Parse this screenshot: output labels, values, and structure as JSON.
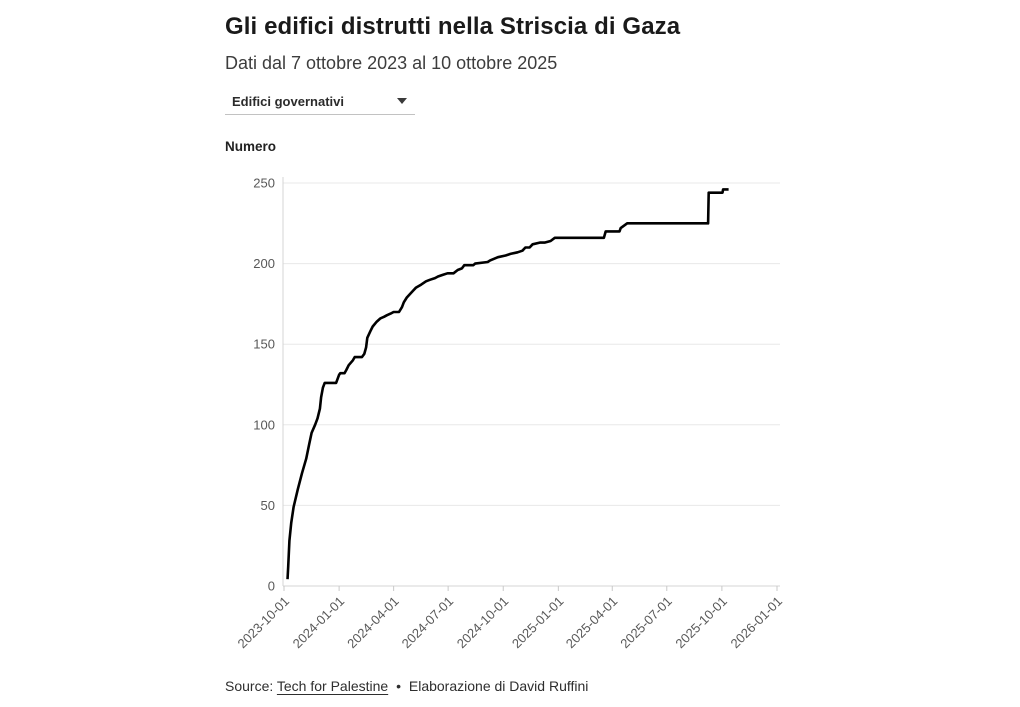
{
  "controls": {
    "category_select": {
      "value": "Edifici governativi"
    }
  },
  "chart_data": {
    "type": "line",
    "title": "Gli edifici distrutti nella Striscia di Gaza",
    "subtitle": "Dati dal 7 ottobre 2023 al 10 ottobre 2025",
    "ylabel": "Numero",
    "xlabel": "",
    "legend": "none",
    "grid": "horizontal",
    "line_color": "#000000",
    "ylim": [
      0,
      250
    ],
    "xlim": [
      "2023-10-01",
      "2026-01-01"
    ],
    "y_ticks": [
      0,
      50,
      100,
      150,
      200,
      250
    ],
    "x_ticks": [
      "2023-10-01",
      "2024-01-01",
      "2024-04-01",
      "2024-07-01",
      "2024-10-01",
      "2025-01-01",
      "2025-04-01",
      "2025-07-01",
      "2025-10-01",
      "2026-01-01"
    ],
    "x_tick_rotation_deg": 45,
    "series": [
      {
        "name": "Edifici governativi",
        "points": [
          [
            "2023-10-07",
            5
          ],
          [
            "2023-10-08",
            12
          ],
          [
            "2023-10-09",
            20
          ],
          [
            "2023-10-10",
            28
          ],
          [
            "2023-10-13",
            39
          ],
          [
            "2023-10-17",
            49
          ],
          [
            "2023-10-24",
            60
          ],
          [
            "2023-10-31",
            70
          ],
          [
            "2023-11-07",
            79
          ],
          [
            "2023-11-12",
            88
          ],
          [
            "2023-11-16",
            95
          ],
          [
            "2023-11-22",
            100
          ],
          [
            "2023-11-26",
            104
          ],
          [
            "2023-11-30",
            110
          ],
          [
            "2023-12-02",
            117
          ],
          [
            "2023-12-05",
            123
          ],
          [
            "2023-12-08",
            126
          ],
          [
            "2023-12-27",
            126
          ],
          [
            "2023-12-29",
            128
          ],
          [
            "2024-01-01",
            131
          ],
          [
            "2024-01-03",
            132
          ],
          [
            "2024-01-10",
            132
          ],
          [
            "2024-01-13",
            134
          ],
          [
            "2024-01-17",
            137
          ],
          [
            "2024-01-24",
            140
          ],
          [
            "2024-01-27",
            142
          ],
          [
            "2024-02-08",
            142
          ],
          [
            "2024-02-12",
            144
          ],
          [
            "2024-02-15",
            148
          ],
          [
            "2024-02-17",
            154
          ],
          [
            "2024-02-22",
            158
          ],
          [
            "2024-02-26",
            161
          ],
          [
            "2024-03-04",
            164
          ],
          [
            "2024-03-10",
            166
          ],
          [
            "2024-03-16",
            167
          ],
          [
            "2024-03-21",
            168
          ],
          [
            "2024-03-27",
            169
          ],
          [
            "2024-04-01",
            170
          ],
          [
            "2024-04-10",
            170
          ],
          [
            "2024-04-15",
            173
          ],
          [
            "2024-04-18",
            176
          ],
          [
            "2024-04-23",
            179
          ],
          [
            "2024-04-28",
            181
          ],
          [
            "2024-05-03",
            183
          ],
          [
            "2024-05-08",
            185
          ],
          [
            "2024-05-17",
            187
          ],
          [
            "2024-05-25",
            189
          ],
          [
            "2024-06-01",
            190
          ],
          [
            "2024-06-09",
            191
          ],
          [
            "2024-06-14",
            192
          ],
          [
            "2024-06-22",
            193
          ],
          [
            "2024-06-30",
            194
          ],
          [
            "2024-07-10",
            194
          ],
          [
            "2024-07-17",
            196
          ],
          [
            "2024-07-24",
            197
          ],
          [
            "2024-07-28",
            199
          ],
          [
            "2024-08-12",
            199
          ],
          [
            "2024-08-15",
            200
          ],
          [
            "2024-09-05",
            201
          ],
          [
            "2024-09-09",
            202
          ],
          [
            "2024-09-22",
            204
          ],
          [
            "2024-10-05",
            205
          ],
          [
            "2024-10-13",
            206
          ],
          [
            "2024-10-25",
            207
          ],
          [
            "2024-11-02",
            208
          ],
          [
            "2024-11-07",
            210
          ],
          [
            "2024-11-14",
            210
          ],
          [
            "2024-11-19",
            212
          ],
          [
            "2024-12-01",
            213
          ],
          [
            "2024-12-09",
            213
          ],
          [
            "2024-12-19",
            214
          ],
          [
            "2024-12-26",
            216
          ],
          [
            "2025-03-18",
            216
          ],
          [
            "2025-03-21",
            220
          ],
          [
            "2025-04-13",
            220
          ],
          [
            "2025-04-15",
            222
          ],
          [
            "2025-04-26",
            225
          ],
          [
            "2025-09-08",
            225
          ],
          [
            "2025-09-09",
            244
          ],
          [
            "2025-10-02",
            244
          ],
          [
            "2025-10-03",
            246
          ],
          [
            "2025-10-10",
            246
          ]
        ]
      }
    ]
  },
  "footer": {
    "source_label": "Source:",
    "source_link": "Tech for Palestine",
    "separator": "•",
    "credit": "Elaborazione di David Ruffini"
  }
}
